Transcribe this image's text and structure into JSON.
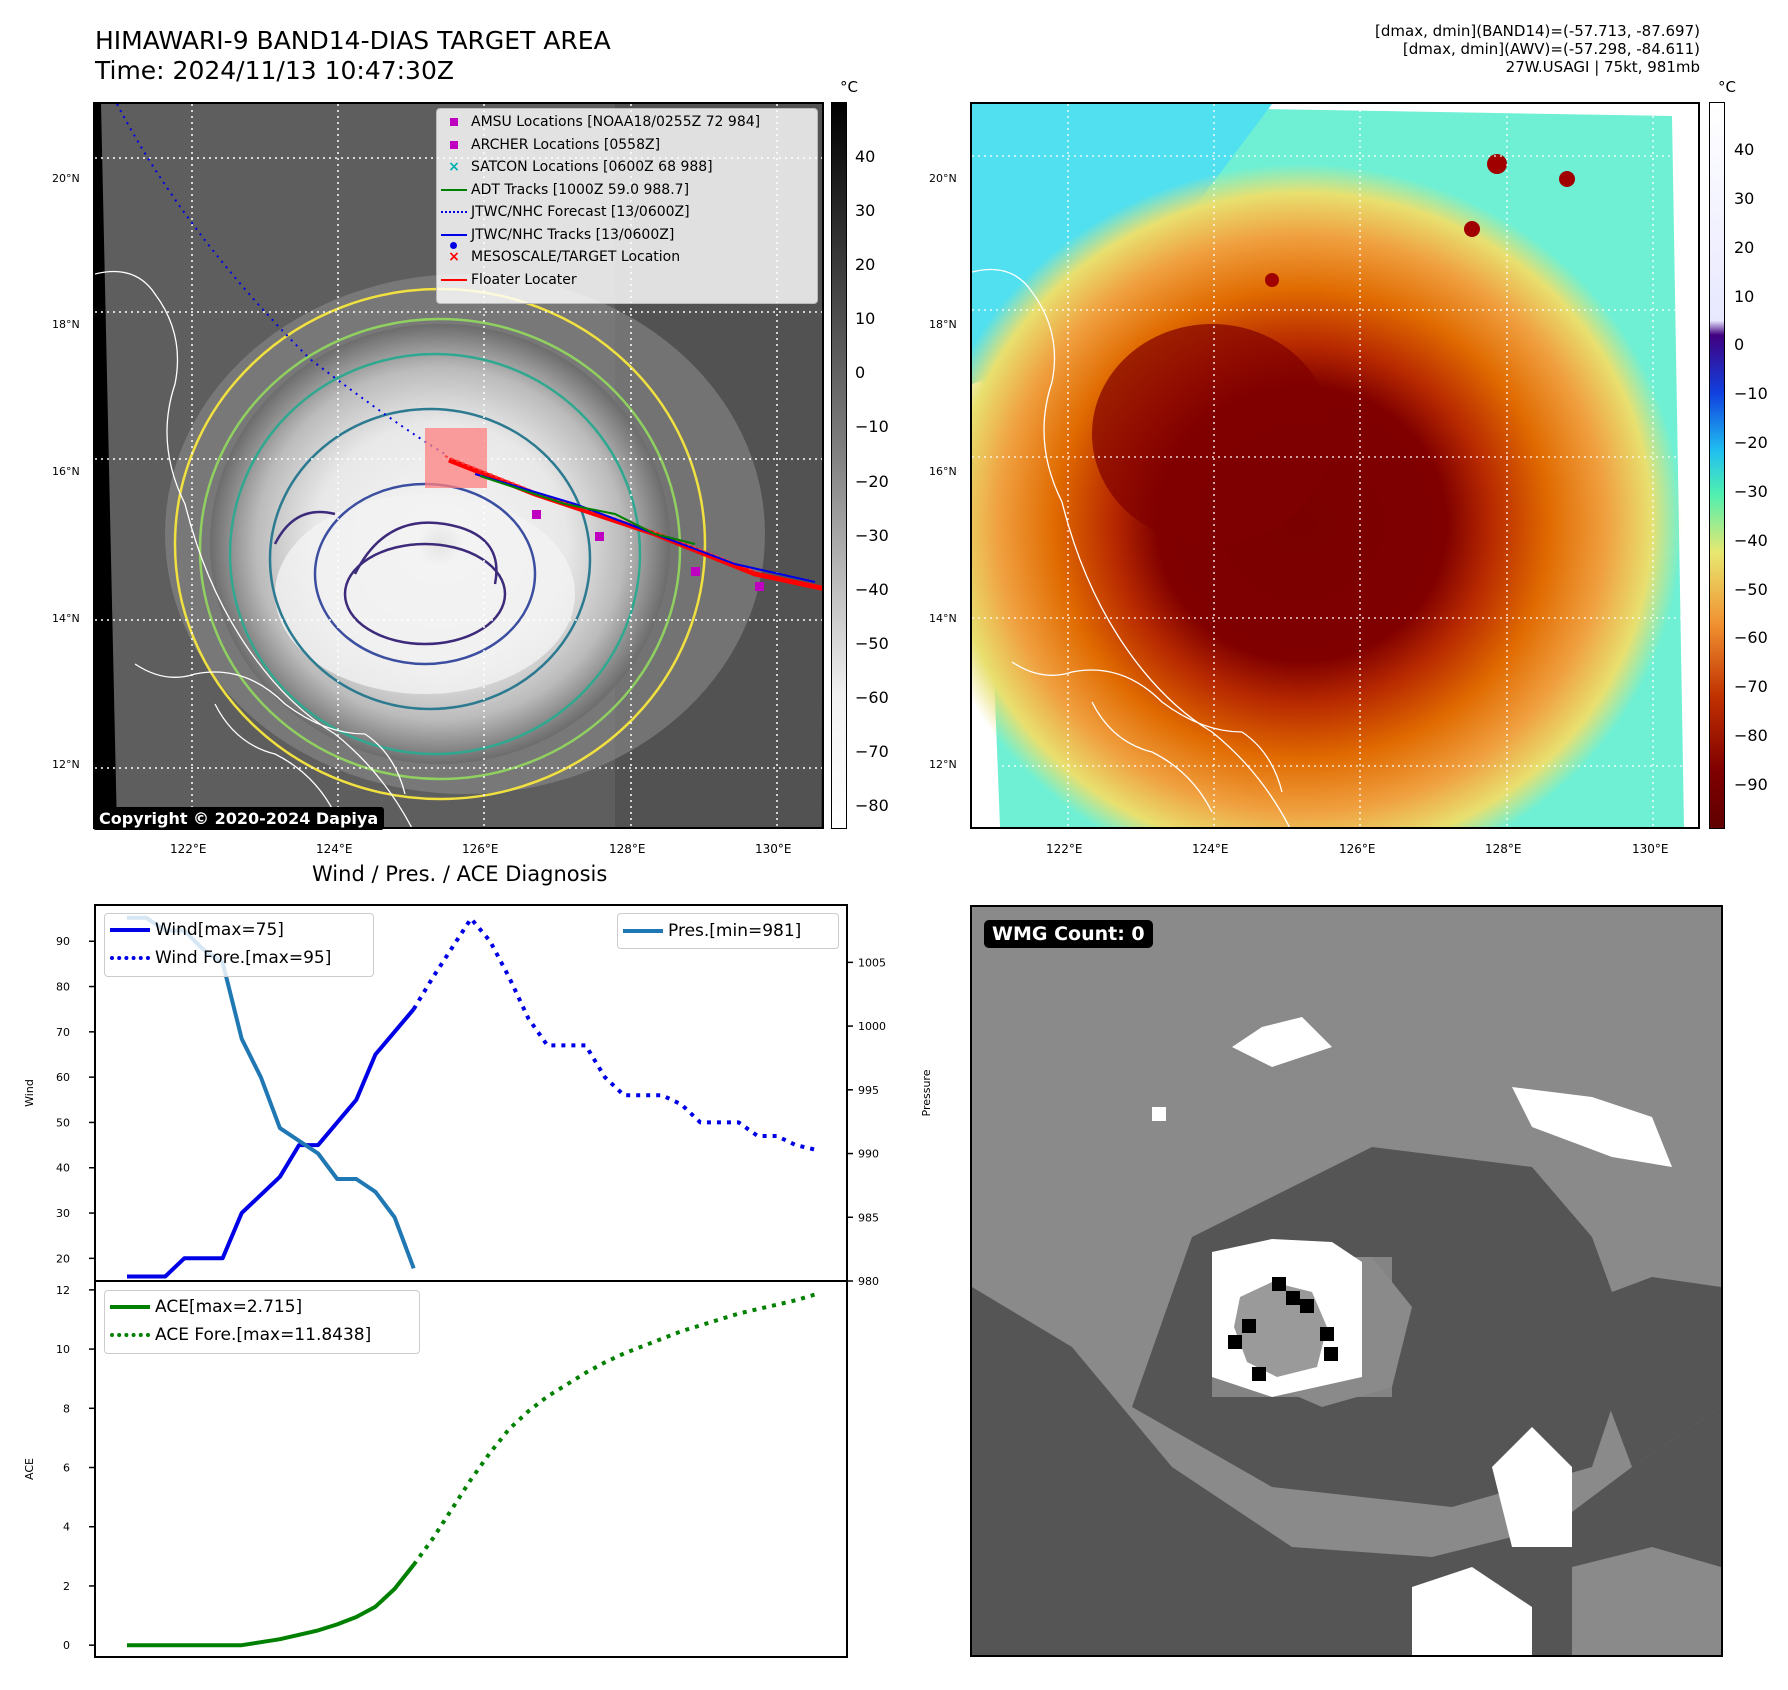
{
  "header": {
    "title_line1": "HIMAWARI-9 BAND14-DIAS TARGET AREA",
    "title_line2": "Time: 2024/11/13 10:47:30Z",
    "info_line1": "[dmax, dmin](BAND14)=(-57.713, -87.697)",
    "info_line2": "[dmax, dmin](AWV)=(-57.298, -84.611)",
    "info_line3": "27W.USAGI | 75kt, 981mb"
  },
  "map_axes": {
    "lat_labels": [
      "20°N",
      "18°N",
      "16°N",
      "14°N",
      "12°N"
    ],
    "lon_labels": [
      "122°E",
      "124°E",
      "126°E",
      "128°E",
      "130°E"
    ]
  },
  "colorbar_ir": {
    "unit": "°C",
    "ticks": [
      "40",
      "30",
      "20",
      "10",
      "0",
      "−10",
      "−20",
      "−30",
      "−40",
      "−50",
      "−60",
      "−70",
      "−80"
    ]
  },
  "colorbar_awv": {
    "unit": "°C",
    "ticks": [
      "40",
      "30",
      "20",
      "10",
      "0",
      "−10",
      "−20",
      "−30",
      "−40",
      "−50",
      "−60",
      "−70",
      "−80",
      "−90"
    ]
  },
  "legend": {
    "items": [
      "AMSU Locations [NOAA18/0255Z 72 984]",
      "ARCHER Locations [0558Z]",
      "SATCON Locations [0600Z 68 988]",
      "ADT Tracks [1000Z 59.0 988.7]",
      "JTWC/NHC Forecast [13/0600Z]",
      "JTWC/NHC Tracks [13/0600Z]",
      "MESOSCALE/TARGET Location",
      "Floater Locater"
    ]
  },
  "copyright": "Copyright © 2020-2024 Dapiya",
  "wmg_label": "WMG Count: 0",
  "colors": {
    "wind": "#0000e6",
    "pressure": "#1f77b4",
    "ace": "#008000",
    "track_red": "#ff0000"
  },
  "chart_data": [
    {
      "type": "line",
      "title": "Wind / Pres. / ACE Diagnosis",
      "ylabel": "Wind",
      "ylim": [
        15,
        98
      ],
      "yticks": [
        "20",
        "30",
        "40",
        "50",
        "60",
        "70",
        "80",
        "90"
      ],
      "x": [
        0,
        1,
        2,
        3,
        4,
        5,
        6,
        7,
        8,
        9,
        10,
        11,
        12,
        13,
        14,
        15,
        16,
        17,
        18,
        19,
        20,
        21,
        22,
        23,
        24,
        25,
        26,
        27,
        28,
        29,
        30,
        31,
        32,
        33,
        34,
        35,
        36
      ],
      "series": [
        {
          "name": "Wind[max=75]",
          "style": "solid",
          "x": [
            0,
            2,
            3,
            5,
            6,
            8,
            9,
            10,
            12,
            13,
            15
          ],
          "values": [
            16,
            16,
            20,
            20,
            30,
            38,
            45,
            45,
            55,
            65,
            75
          ]
        },
        {
          "name": "Wind Fore.[max=95]",
          "style": "dotted",
          "x": [
            15,
            16,
            18,
            19,
            20,
            21,
            22,
            24,
            25,
            26,
            27,
            28,
            29,
            30,
            31,
            32,
            33,
            34,
            35,
            36
          ],
          "values": [
            75,
            82,
            95,
            90,
            82,
            73,
            67,
            67,
            60,
            56,
            56,
            56,
            54,
            50,
            50,
            50,
            47,
            47,
            45,
            44
          ]
        }
      ],
      "legend": [
        "Wind[max=75]",
        "Wind Fore.[max=95]"
      ]
    },
    {
      "type": "line",
      "ylabel": "Pressure",
      "ylim": [
        980,
        1009.5
      ],
      "yticks": [
        "980",
        "985",
        "990",
        "995",
        "1000",
        "1005"
      ],
      "series": [
        {
          "name": "Pres.[min=981]",
          "style": "solid",
          "x": [
            0,
            1,
            2,
            3,
            4,
            5,
            6,
            7,
            8,
            9,
            10,
            11,
            12,
            13,
            14,
            15
          ],
          "values": [
            1008.5,
            1008.5,
            1007.5,
            1007.5,
            1006,
            1005,
            999,
            996,
            992,
            991,
            990,
            988,
            988,
            987,
            985,
            981
          ]
        }
      ],
      "legend": [
        "Pres.[min=981]"
      ]
    },
    {
      "type": "line",
      "ylabel": "ACE",
      "ylim": [
        -0.4,
        12.3
      ],
      "yticks": [
        "0",
        "2",
        "4",
        "6",
        "8",
        "10",
        "12"
      ],
      "series": [
        {
          "name": "ACE[max=2.715]",
          "style": "solid",
          "x": [
            0,
            1,
            2,
            3,
            4,
            5,
            6,
            7,
            8,
            9,
            10,
            11,
            12,
            13,
            14,
            15
          ],
          "values": [
            0,
            0,
            0,
            0,
            0,
            0,
            0,
            0.1,
            0.2,
            0.35,
            0.5,
            0.7,
            0.95,
            1.3,
            1.9,
            2.715
          ]
        },
        {
          "name": "ACE Fore.[max=11.8438]",
          "style": "dotted",
          "x": [
            15,
            16,
            17,
            18,
            19,
            20,
            21,
            22,
            23,
            24,
            25,
            26,
            27,
            28,
            29,
            30,
            31,
            32,
            33,
            34,
            35,
            36
          ],
          "values": [
            2.715,
            3.6,
            4.6,
            5.6,
            6.5,
            7.3,
            7.9,
            8.4,
            8.8,
            9.2,
            9.55,
            9.85,
            10.1,
            10.35,
            10.6,
            10.8,
            11.0,
            11.2,
            11.35,
            11.5,
            11.65,
            11.8438
          ]
        }
      ],
      "legend": [
        "ACE[max=2.715]",
        "ACE Fore.[max=11.8438]"
      ]
    }
  ]
}
